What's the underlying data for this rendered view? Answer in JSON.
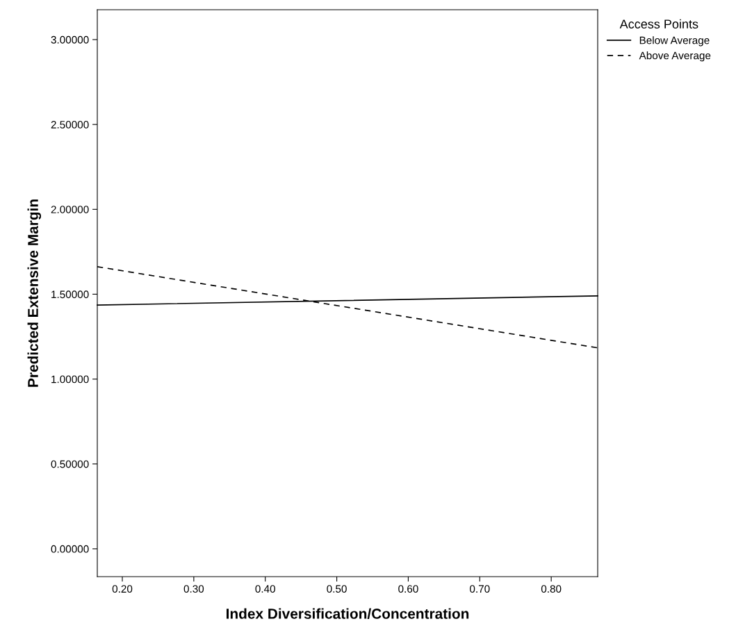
{
  "chart_data": {
    "type": "line",
    "xlabel": "Index Diversification/Concentration",
    "ylabel": "Predicted Extensive Margin",
    "legend_title": "Access Points",
    "legend": "top right",
    "x": [
      0.165,
      0.865
    ],
    "series": [
      {
        "name": "Below Average",
        "color": "#000000",
        "line_style": "solid",
        "values": [
          1.436,
          1.49
        ]
      },
      {
        "name": "Above Average",
        "color": "#000000",
        "line_style": "dashed",
        "values": [
          1.662,
          1.184
        ]
      }
    ],
    "xlim": [
      0.165,
      0.865
    ],
    "ylim": [
      -0.164,
      3.176
    ],
    "xticks": [
      {
        "value": 0.2,
        "label": "0.20"
      },
      {
        "value": 0.3,
        "label": "0.30"
      },
      {
        "value": 0.4,
        "label": "0.40"
      },
      {
        "value": 0.5,
        "label": "0.50"
      },
      {
        "value": 0.6,
        "label": "0.60"
      },
      {
        "value": 0.7,
        "label": "0.70"
      },
      {
        "value": 0.8,
        "label": "0.80"
      }
    ],
    "yticks": [
      {
        "value": 0,
        "label": "0.00000"
      },
      {
        "value": 0.5,
        "label": "0.50000"
      },
      {
        "value": 1,
        "label": "1.00000"
      },
      {
        "value": 1.5,
        "label": "1.50000"
      },
      {
        "value": 2,
        "label": "2.00000"
      },
      {
        "value": 2.5,
        "label": "2.50000"
      },
      {
        "value": 3,
        "label": "3.00000"
      }
    ],
    "grid": false
  }
}
